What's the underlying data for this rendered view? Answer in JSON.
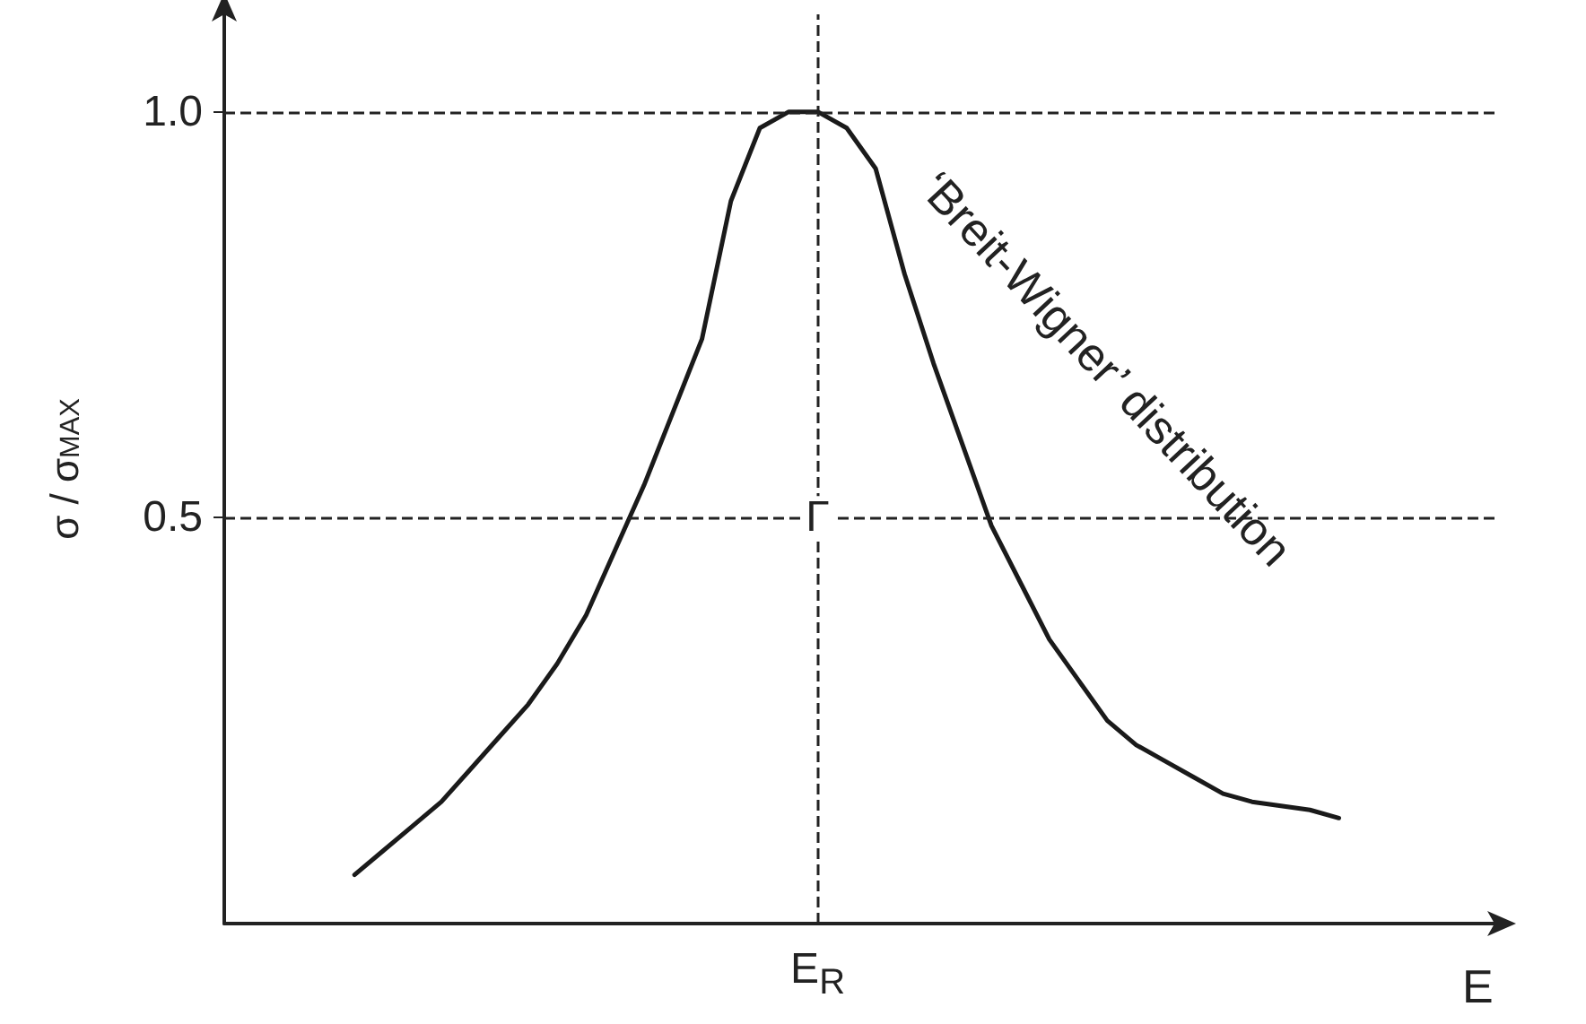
{
  "chart_data": {
    "type": "line",
    "xlabel": "E",
    "ylabel": "σ / σ$_{MAX}$",
    "categories": [
      null,
      null,
      null,
      null,
      null,
      null,
      null,
      null,
      null,
      null,
      null,
      null,
      null,
      null,
      null,
      null,
      null,
      null,
      null,
      null,
      "E$_{R}$",
      null,
      null,
      null,
      null,
      null,
      null,
      null,
      null,
      null,
      null,
      null,
      null,
      null,
      null,
      null,
      null,
      null,
      null,
      null,
      null,
      null,
      null,
      null
    ],
    "series": [
      {
        "color": "#1a1a1a",
        "values": [
          null,
          null,
          null,
          null,
          0.06,
          0.09,
          0.12,
          0.15,
          0.19,
          0.23,
          0.27,
          0.32,
          0.38,
          0.46,
          0.54,
          0.63,
          0.72,
          0.89,
          0.98,
          1.0,
          1.0,
          0.98,
          0.93,
          0.8,
          0.69,
          0.59,
          0.49,
          0.42,
          0.35,
          0.3,
          0.25,
          0.22,
          0.2,
          0.18,
          0.16,
          0.15,
          0.145,
          0.14,
          0.13,
          null,
          null,
          null,
          null,
          null
        ]
      }
    ],
    "ylim": [
      0,
      1.12
    ],
    "yticks": [
      0.5,
      {
        "value": 1,
        "label": "1.0"
      }
    ],
    "ref_lines": [
      {
        "axis": "y",
        "value": 1,
        "line_style": "dashed"
      },
      {
        "axis": "y",
        "value": 0.5,
        "line_style": "dashed"
      },
      {
        "axis": "x",
        "value": "E$_{R}$",
        "line_style": "dashed"
      }
    ],
    "annotations": [
      {
        "text": "Γ",
        "x": "E$_{R}$",
        "y": 0.5
      },
      "‘Breit-Wigner’ distribution"
    ],
    "grid": false,
    "legend": false,
    "marker": "none",
    "line_style": "solid"
  }
}
